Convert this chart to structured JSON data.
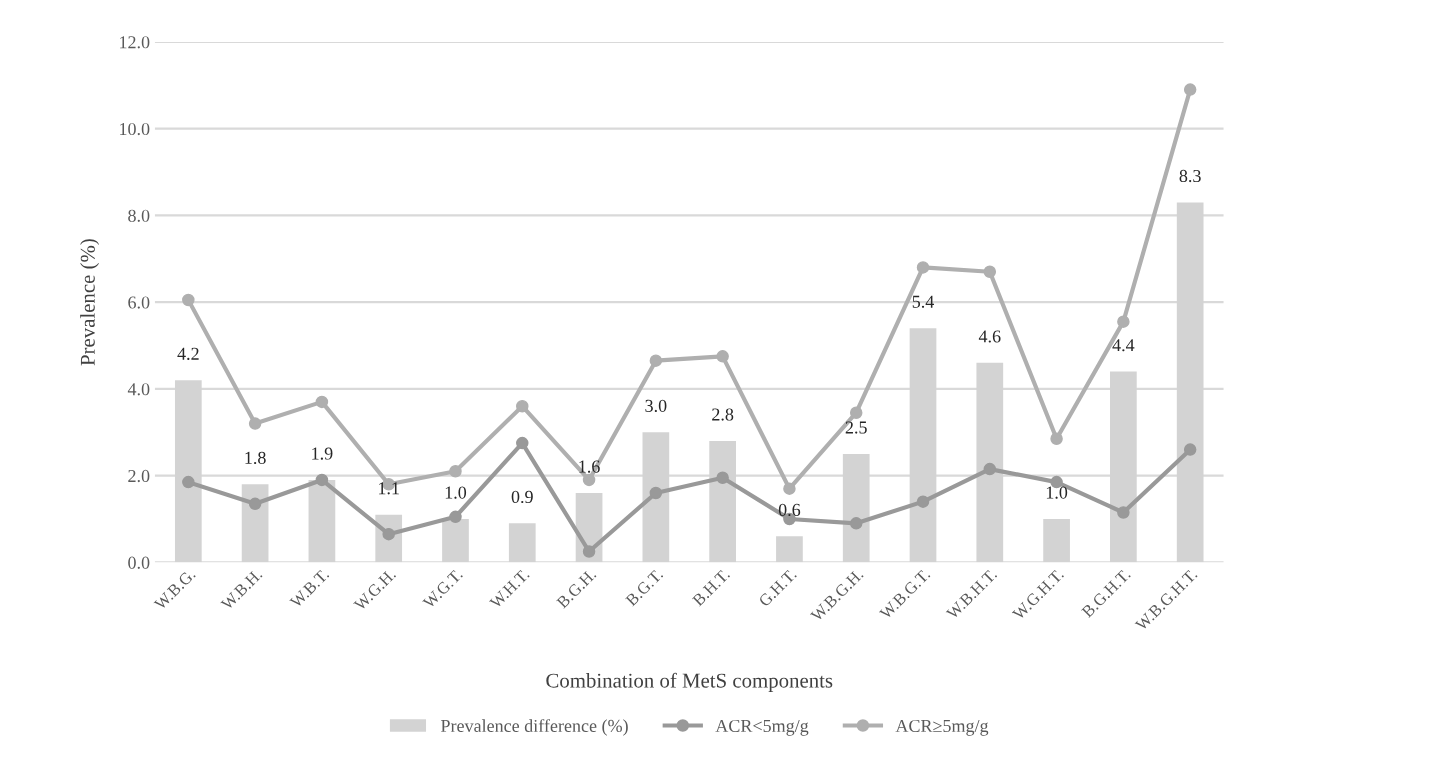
{
  "chart_data": {
    "type": "bar",
    "xlabel": "Combination of MetS components",
    "ylabel": "Prevalence (%)",
    "categories": [
      "W.B.G.",
      "W.B.H.",
      "W.B.T.",
      "W.G.H.",
      "W.G.T.",
      "W.H.T.",
      "B.G.H.",
      "B.G.T.",
      "B.H.T.",
      "G.H.T.",
      "W.B.G.H.",
      "W.B.G.T.",
      "W.B.H.T.",
      "W.G.H.T.",
      "B.G.H.T.",
      "W.B.G.H.T."
    ],
    "series": [
      {
        "name": "Prevalence difference (%)",
        "color": "#d3d3d3",
        "values": [
          4.2,
          1.8,
          1.9,
          1.1,
          1.0,
          0.9,
          1.6,
          3.0,
          2.8,
          0.6,
          2.5,
          5.4,
          4.6,
          1.0,
          4.4,
          8.3
        ],
        "value_labels": [
          "4.2",
          "1.8",
          "1.9",
          "1.1",
          "1.0",
          "0.9",
          "1.6",
          "3.0",
          "2.8",
          "0.6",
          "2.5",
          "5.4",
          "4.6",
          "1.0",
          "4.4",
          "8.3"
        ]
      },
      {
        "name": "ACR<5mg/g",
        "type": "line",
        "color": "#999999",
        "values": [
          1.85,
          1.35,
          1.9,
          0.65,
          1.05,
          2.75,
          0.25,
          1.6,
          1.95,
          1.0,
          0.9,
          1.4,
          2.15,
          1.85,
          1.15,
          2.6
        ]
      },
      {
        "name": "ACR≥5mg/g",
        "type": "line",
        "color": "#afafaf",
        "values": [
          6.05,
          3.2,
          3.7,
          1.8,
          2.1,
          3.6,
          1.9,
          4.65,
          4.75,
          1.7,
          3.45,
          6.8,
          6.7,
          2.85,
          5.55,
          10.9
        ]
      }
    ],
    "ylim": [
      0,
      12
    ],
    "yticks": [
      {
        "value": 0,
        "label": "0.0"
      },
      {
        "value": 2,
        "label": "2.0"
      },
      {
        "value": 4,
        "label": "4.0"
      },
      {
        "value": 6,
        "label": "6.0"
      },
      {
        "value": 8,
        "label": "8.0"
      },
      {
        "value": 10,
        "label": "10.0"
      },
      {
        "value": 12,
        "label": "12.0"
      }
    ],
    "grid": "y",
    "legend": "bottom",
    "marker": "circle",
    "line_style": "solid"
  }
}
